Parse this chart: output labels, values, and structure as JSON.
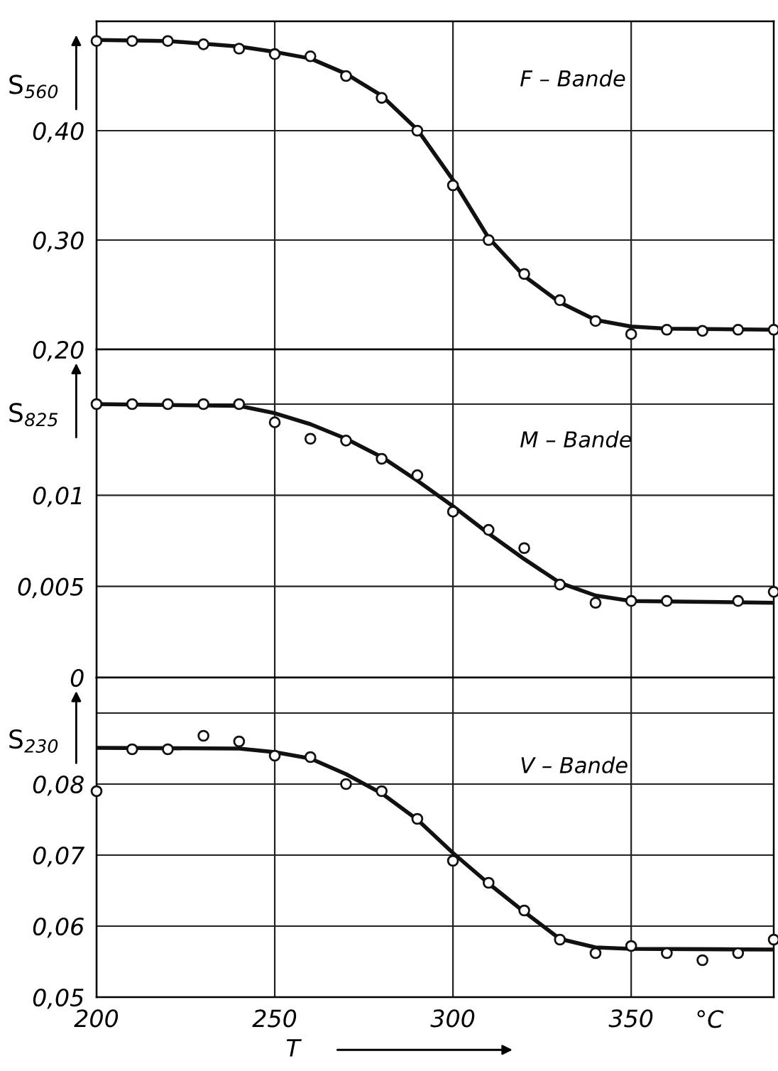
{
  "chart_data": [
    {
      "type": "scatter",
      "ylabel": "S$_{560}$",
      "annotations": [
        "F – Bande"
      ],
      "xlim": [
        200,
        390
      ],
      "ylim": [
        0.2,
        0.5
      ],
      "xticks": [
        200,
        250,
        300,
        350
      ],
      "yticks": [
        {
          "value": 0.2,
          "label": "0,20"
        },
        {
          "value": 0.3,
          "label": "0,30"
        },
        {
          "value": 0.4,
          "label": "0,40"
        }
      ],
      "tick_labels": "y",
      "grid": true,
      "series": [
        {
          "marker": "circle",
          "color": "#111111",
          "x": [
            200,
            210,
            220,
            230,
            240,
            250,
            260,
            270,
            280,
            290,
            300,
            310,
            320,
            330,
            340,
            350,
            360,
            370,
            380,
            390
          ],
          "values": [
            0.482,
            0.482,
            0.482,
            0.479,
            0.475,
            0.47,
            0.468,
            0.45,
            0.43,
            0.4,
            0.35,
            0.3,
            0.269,
            0.245,
            0.226,
            0.214,
            0.218,
            0.217,
            0.218,
            0.218
          ]
        },
        {
          "type": "line",
          "color": "#111111",
          "line_style": "solid",
          "x": [
            200,
            220,
            240,
            250,
            260,
            270,
            280,
            290,
            300,
            310,
            320,
            330,
            340,
            350,
            360,
            390
          ],
          "values": [
            0.483,
            0.482,
            0.477,
            0.472,
            0.466,
            0.452,
            0.432,
            0.401,
            0.355,
            0.302,
            0.267,
            0.243,
            0.227,
            0.221,
            0.219,
            0.218
          ]
        }
      ]
    },
    {
      "type": "scatter",
      "ylabel": "S$_{825}$",
      "annotations": [
        "M – Bande"
      ],
      "xlim": [
        200,
        390
      ],
      "ylim": [
        0,
        0.018
      ],
      "xticks": [
        200,
        250,
        300,
        350
      ],
      "yticks": [
        0,
        {
          "value": 0.005,
          "label": "0,005"
        },
        {
          "value": 0.01,
          "label": "0,01"
        },
        {
          "value": 0.015,
          "label": null
        }
      ],
      "tick_labels": "y",
      "grid": true,
      "series": [
        {
          "marker": "circle",
          "color": "#111111",
          "x": [
            200,
            210,
            220,
            230,
            240,
            250,
            260,
            270,
            280,
            290,
            300,
            310,
            320,
            330,
            340,
            350,
            360,
            380,
            390
          ],
          "values": [
            0.015,
            0.015,
            0.015,
            0.015,
            0.015,
            0.014,
            0.0131,
            0.013,
            0.012,
            0.0111,
            0.0091,
            0.0081,
            0.0071,
            0.0051,
            0.0041,
            0.0042,
            0.0042,
            0.0042,
            0.0047
          ]
        },
        {
          "type": "line",
          "color": "#111111",
          "line_style": "solid",
          "x": [
            200,
            240,
            250,
            260,
            270,
            280,
            290,
            300,
            310,
            320,
            330,
            340,
            350,
            390
          ],
          "values": [
            0.015,
            0.0149,
            0.0145,
            0.0139,
            0.0131,
            0.0121,
            0.0108,
            0.0094,
            0.0079,
            0.0065,
            0.0052,
            0.0045,
            0.0042,
            0.0041
          ]
        }
      ]
    },
    {
      "type": "scatter",
      "ylabel": "S$_{230}$",
      "xlabel": "T",
      "annotations": [
        "V – Bande",
        "°C"
      ],
      "xlim": [
        200,
        390
      ],
      "ylim": [
        0.05,
        0.095
      ],
      "xticks": [
        200,
        250,
        300,
        350
      ],
      "yticks": [
        {
          "value": 0.05,
          "label": "0,05"
        },
        {
          "value": 0.06,
          "label": "0,06"
        },
        {
          "value": 0.07,
          "label": "0,07"
        },
        {
          "value": 0.08,
          "label": "0,08"
        },
        {
          "value": 0.09,
          "label": null
        }
      ],
      "grid": true,
      "series": [
        {
          "marker": "circle",
          "color": "#111111",
          "x": [
            200,
            210,
            220,
            230,
            240,
            250,
            260,
            270,
            280,
            290,
            300,
            310,
            320,
            330,
            340,
            350,
            360,
            370,
            380,
            390
          ],
          "values": [
            0.079,
            0.0849,
            0.0849,
            0.0868,
            0.086,
            0.084,
            0.0838,
            0.08,
            0.079,
            0.0751,
            0.0692,
            0.0661,
            0.0622,
            0.0581,
            0.0562,
            0.0572,
            0.0562,
            0.0552,
            0.0562,
            0.0581
          ]
        },
        {
          "type": "line",
          "color": "#111111",
          "line_style": "solid",
          "x": [
            200,
            240,
            250,
            260,
            270,
            280,
            290,
            300,
            310,
            320,
            330,
            340,
            350,
            390
          ],
          "values": [
            0.0851,
            0.085,
            0.0845,
            0.0836,
            0.0814,
            0.0787,
            0.075,
            0.0703,
            0.066,
            0.062,
            0.0582,
            0.057,
            0.0568,
            0.0567
          ]
        }
      ]
    }
  ]
}
